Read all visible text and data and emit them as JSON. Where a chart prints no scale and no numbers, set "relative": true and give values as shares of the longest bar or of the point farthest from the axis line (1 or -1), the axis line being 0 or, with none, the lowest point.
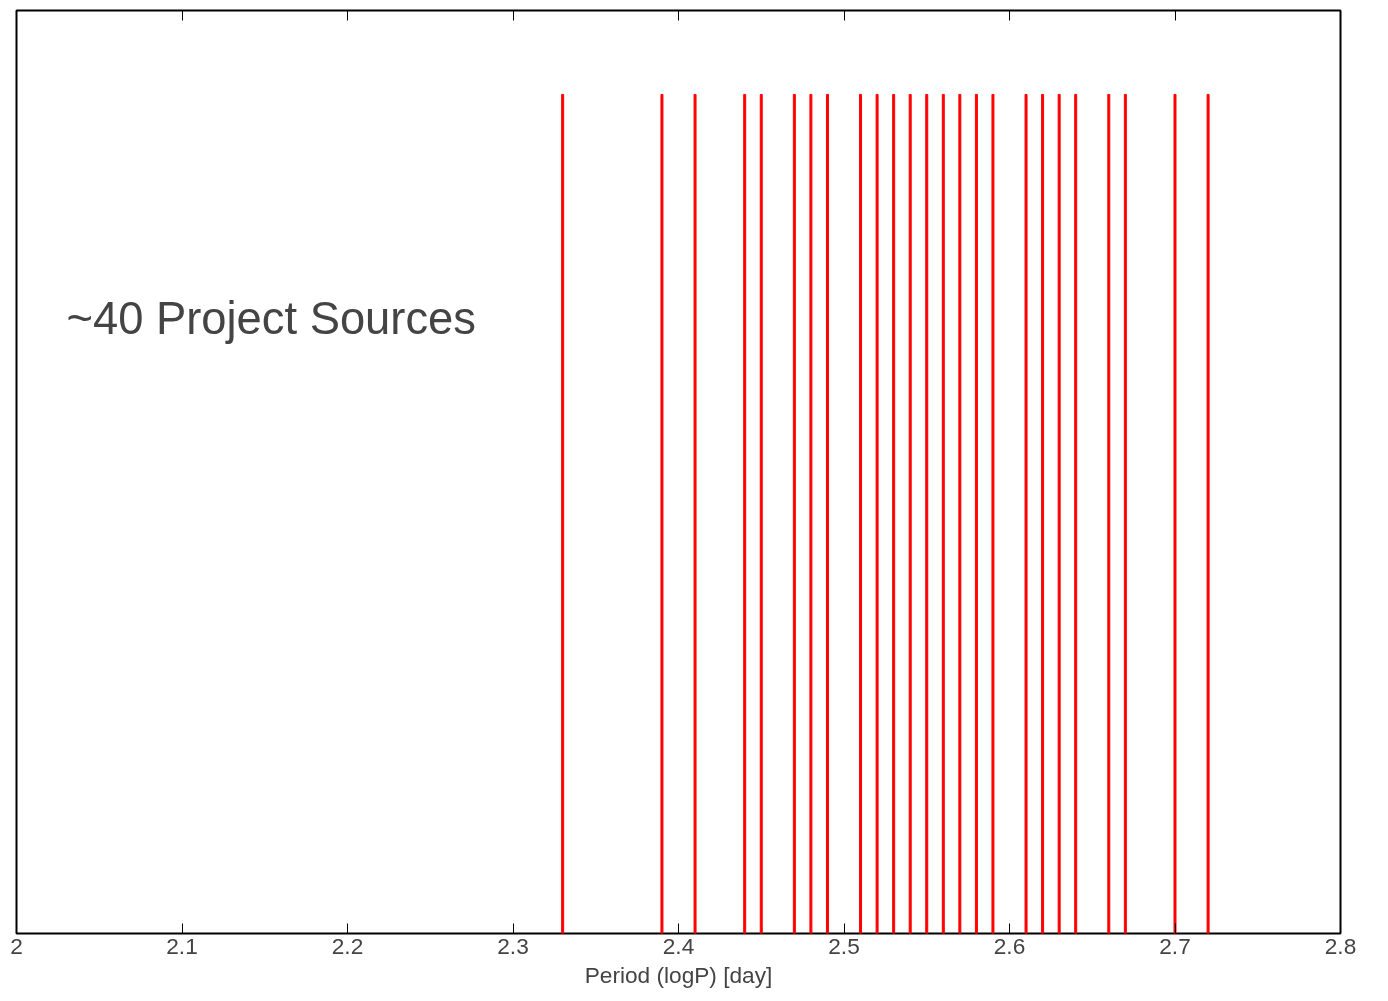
{
  "chart_data": {
    "type": "bar",
    "relative": true,
    "xlabel": "Period (logP) [day]",
    "x": [
      2.33,
      2.39,
      2.41,
      2.44,
      2.45,
      2.47,
      2.48,
      2.49,
      2.51,
      2.52,
      2.53,
      2.54,
      2.55,
      2.56,
      2.57,
      2.58,
      2.59,
      2.61,
      2.62,
      2.63,
      2.64,
      2.66,
      2.67,
      2.7,
      2.72
    ],
    "values": [
      1,
      1,
      1,
      1,
      1,
      1,
      1,
      1,
      1,
      1,
      1,
      1,
      1,
      1,
      1,
      1,
      1,
      1,
      1,
      1,
      1,
      1,
      1,
      1,
      1
    ],
    "color": "#ff0000",
    "xlim": [
      2,
      2.8
    ],
    "xticks": [
      2,
      2.1,
      2.2,
      2.3,
      2.4,
      2.5,
      2.6,
      2.7,
      2.8
    ],
    "annotations": [
      "~40 Project Sources"
    ],
    "grid": false
  }
}
